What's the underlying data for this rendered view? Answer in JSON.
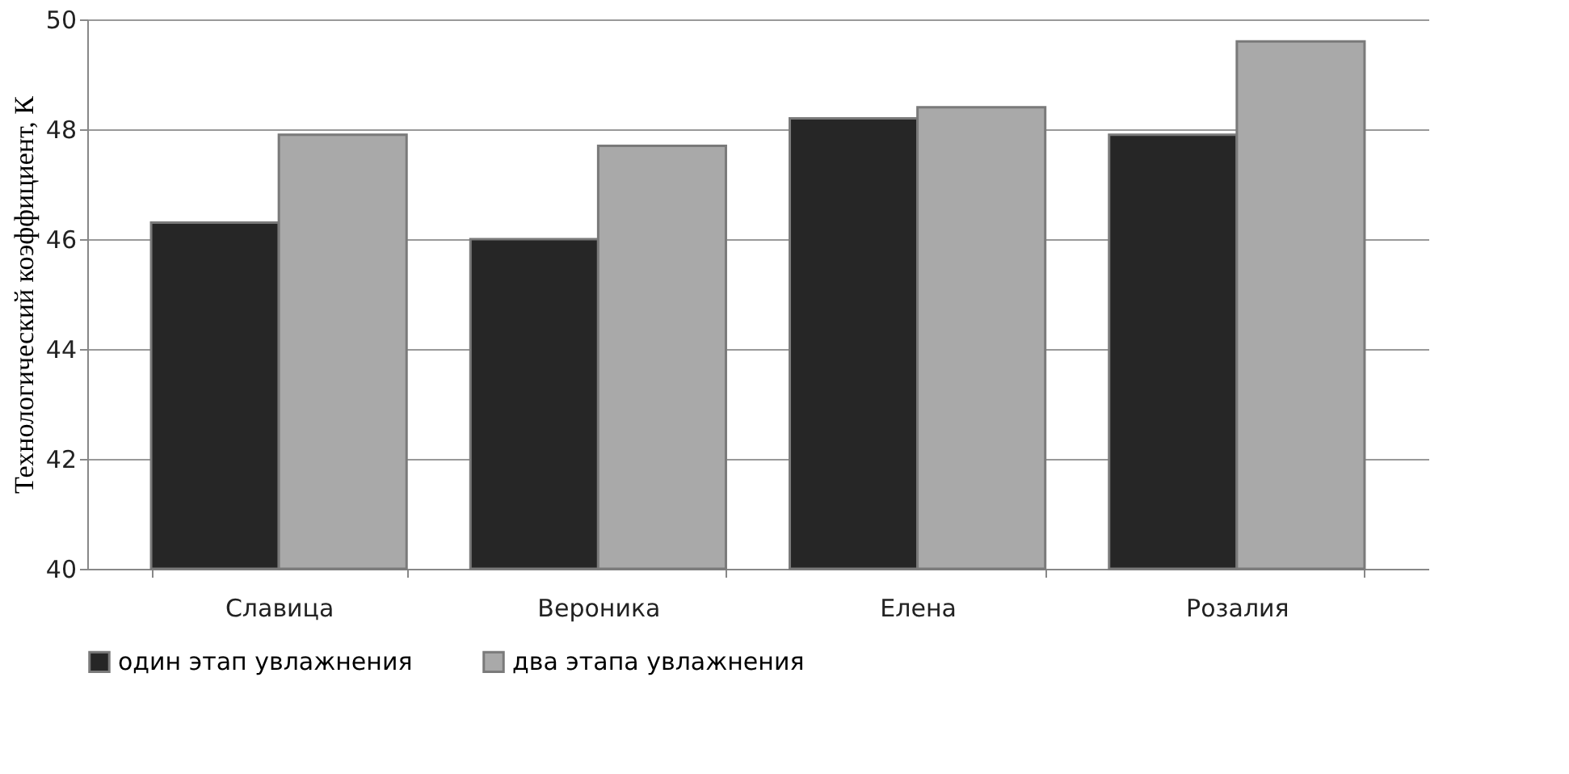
{
  "chart_data": {
    "type": "bar",
    "ylabel": "Технологический коэффициент, К",
    "categories": [
      "Славица",
      "Вероника",
      "Елена",
      "Розалия"
    ],
    "series": [
      {
        "name": "один этап увлажнения",
        "color": "#262626",
        "values": [
          46.3,
          46.0,
          48.2,
          47.9
        ]
      },
      {
        "name": "два этапа увлажнения",
        "color": "#a9a9a9",
        "values": [
          47.9,
          47.7,
          48.4,
          49.6
        ]
      }
    ],
    "ylim": [
      40,
      50
    ],
    "yticks": [
      40,
      42,
      44,
      46,
      48,
      50
    ],
    "grid": "y",
    "legend": "bottom"
  }
}
